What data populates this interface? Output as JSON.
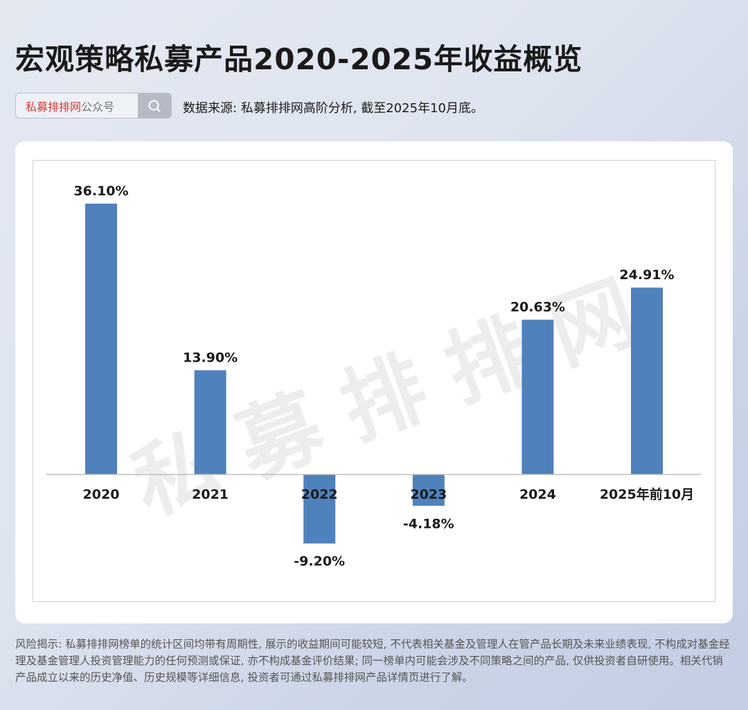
{
  "header": {
    "title": "宏观策略私募产品2020-2025年收益概览",
    "search_brand": "私募排排网",
    "search_suffix": "公众号",
    "search_icon": "search-icon",
    "source": "数据来源: 私募排排网高阶分析, 截至2025年10月底。"
  },
  "watermark": "私募排排网",
  "colors": {
    "bar": "#4f81bd",
    "brand": "#d63a3a"
  },
  "chart_data": {
    "type": "bar",
    "title": "",
    "xlabel": "",
    "ylabel": "",
    "categories": [
      "2020",
      "2021",
      "2022",
      "2023",
      "2024",
      "2025年前10月"
    ],
    "values": [
      36.1,
      13.9,
      -9.2,
      -4.18,
      20.63,
      24.91
    ],
    "labels": [
      "36.10%",
      "13.90%",
      "-9.20%",
      "-4.18%",
      "20.63%",
      "24.91%"
    ],
    "unit": "%",
    "grid": false,
    "legend": "none"
  },
  "footer": {
    "risk": "风险揭示: 私募排排网榜单的统计区间均带有周期性, 展示的收益期间可能较短, 不代表相关基金及管理人在管产品长期及未来业绩表现, 不构成对基金经理及基金管理人投资管理能力的任何预测或保证, 亦不构成基金评价结果; 同一榜单内可能会涉及不同策略之间的产品, 仅供投资者自研使用。相关代销产品成立以来的历史净值、历史规模等详细信息, 投资者可通过私募排排网产品详情页进行了解。"
  }
}
